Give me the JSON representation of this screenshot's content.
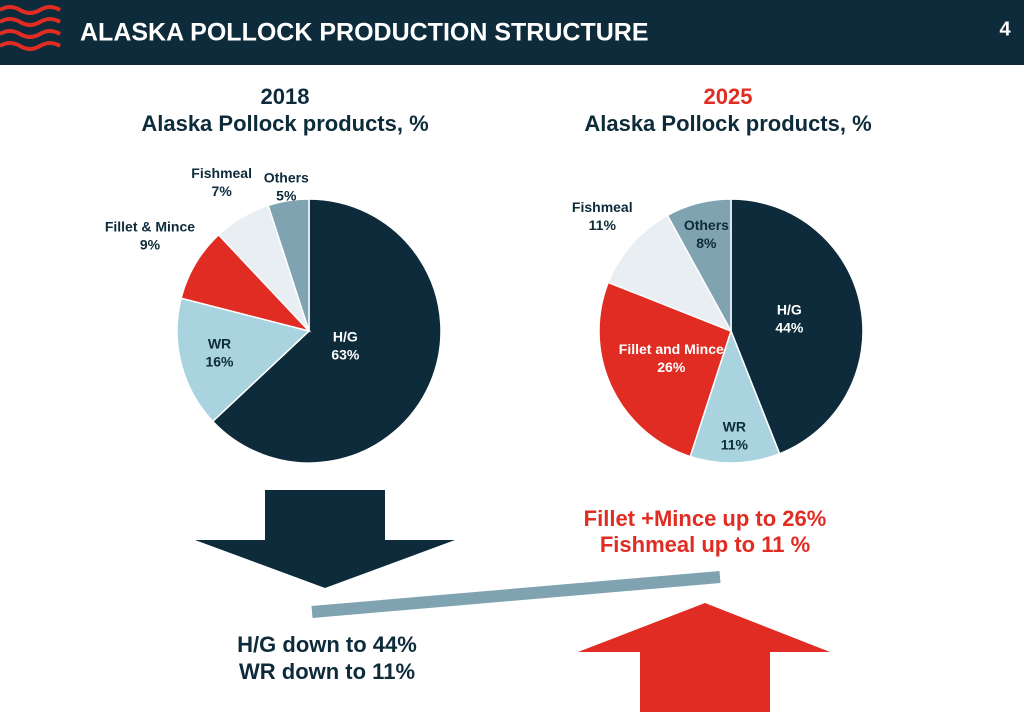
{
  "header": {
    "title": "ALASKA POLLOCK PRODUCTION STRUCTURE",
    "page": "4"
  },
  "chart_data": [
    {
      "type": "pie",
      "title": "2018",
      "subtitle": "Alaska Pollock products, %",
      "categories": [
        "H/G",
        "WR",
        "Fillet & Mince",
        "Fishmeal",
        "Others"
      ],
      "values": [
        63,
        16,
        9,
        7,
        5
      ],
      "value_labels": [
        "63%",
        "16%",
        "9%",
        "7%",
        "5%"
      ],
      "colors": [
        "#0d2b3a",
        "#a8d3df",
        "#e02c22",
        "#e8eef1",
        "#7fa3b0"
      ]
    },
    {
      "type": "pie",
      "title": "2025",
      "subtitle": "Alaska Pollock products, %",
      "categories": [
        "H/G",
        "WR",
        "Fillet and Mince",
        "Fishmeal",
        "Others"
      ],
      "values": [
        44,
        11,
        26,
        11,
        8
      ],
      "value_labels": [
        "44%",
        "11%",
        "26%",
        "11%",
        "8%"
      ],
      "colors": [
        "#0d2b3a",
        "#a8d3df",
        "#e02c22",
        "#e8eef1",
        "#7fa3b0"
      ]
    }
  ],
  "notes": {
    "down": [
      "H/G down to 44%",
      "WR down to 11%"
    ],
    "up": [
      "Fillet +Mince up to 26%",
      "Fishmeal up to 11 %"
    ]
  }
}
